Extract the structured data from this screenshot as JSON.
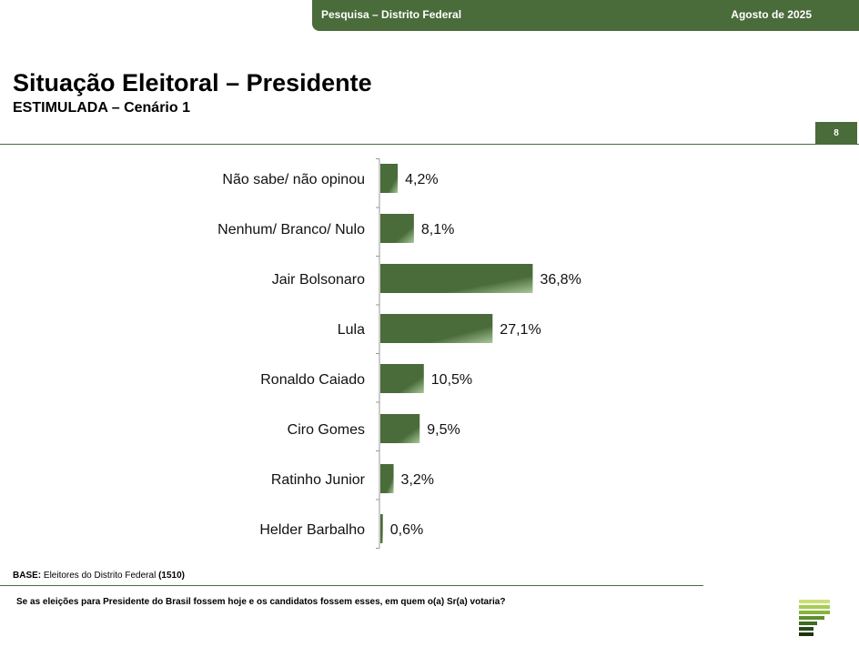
{
  "header": {
    "left_text": "Pesquisa – Distrito Federal",
    "right_text": "Agosto de 2025"
  },
  "title": "Situação Eleitoral – Presidente",
  "subtitle": "ESTIMULADA – Cenário 1",
  "page_number": "8",
  "base": {
    "prefix": "BASE:",
    "text": " Eleitores do Distrito Federal ",
    "count": "(1510)"
  },
  "question": "Se as eleições para Presidente do Brasil fossem hoje e os candidatos fossem esses, em quem o(a) Sr(a) votaria?",
  "colors": {
    "brand_green": "#4a6b3a",
    "bar_light": "#a9c89a"
  },
  "logo_icon": "stacked-bars-logo-icon",
  "chart_data": {
    "type": "bar",
    "orientation": "horizontal",
    "categories": [
      "Não sabe/ não opinou",
      "Nenhum/ Branco/ Nulo",
      "Jair Bolsonaro",
      "Lula",
      "Ronaldo Caiado",
      "Ciro Gomes",
      "Ratinho Junior",
      "Helder Barbalho"
    ],
    "values": [
      4.2,
      8.1,
      36.8,
      27.1,
      10.5,
      9.5,
      3.2,
      0.6
    ],
    "value_labels": [
      "4,2%",
      "8,1%",
      "36,8%",
      "27,1%",
      "10,5%",
      "9,5%",
      "3,2%",
      "0,6%"
    ],
    "title": "",
    "xlabel": "",
    "ylabel": "",
    "grid": false,
    "legend": "none"
  }
}
